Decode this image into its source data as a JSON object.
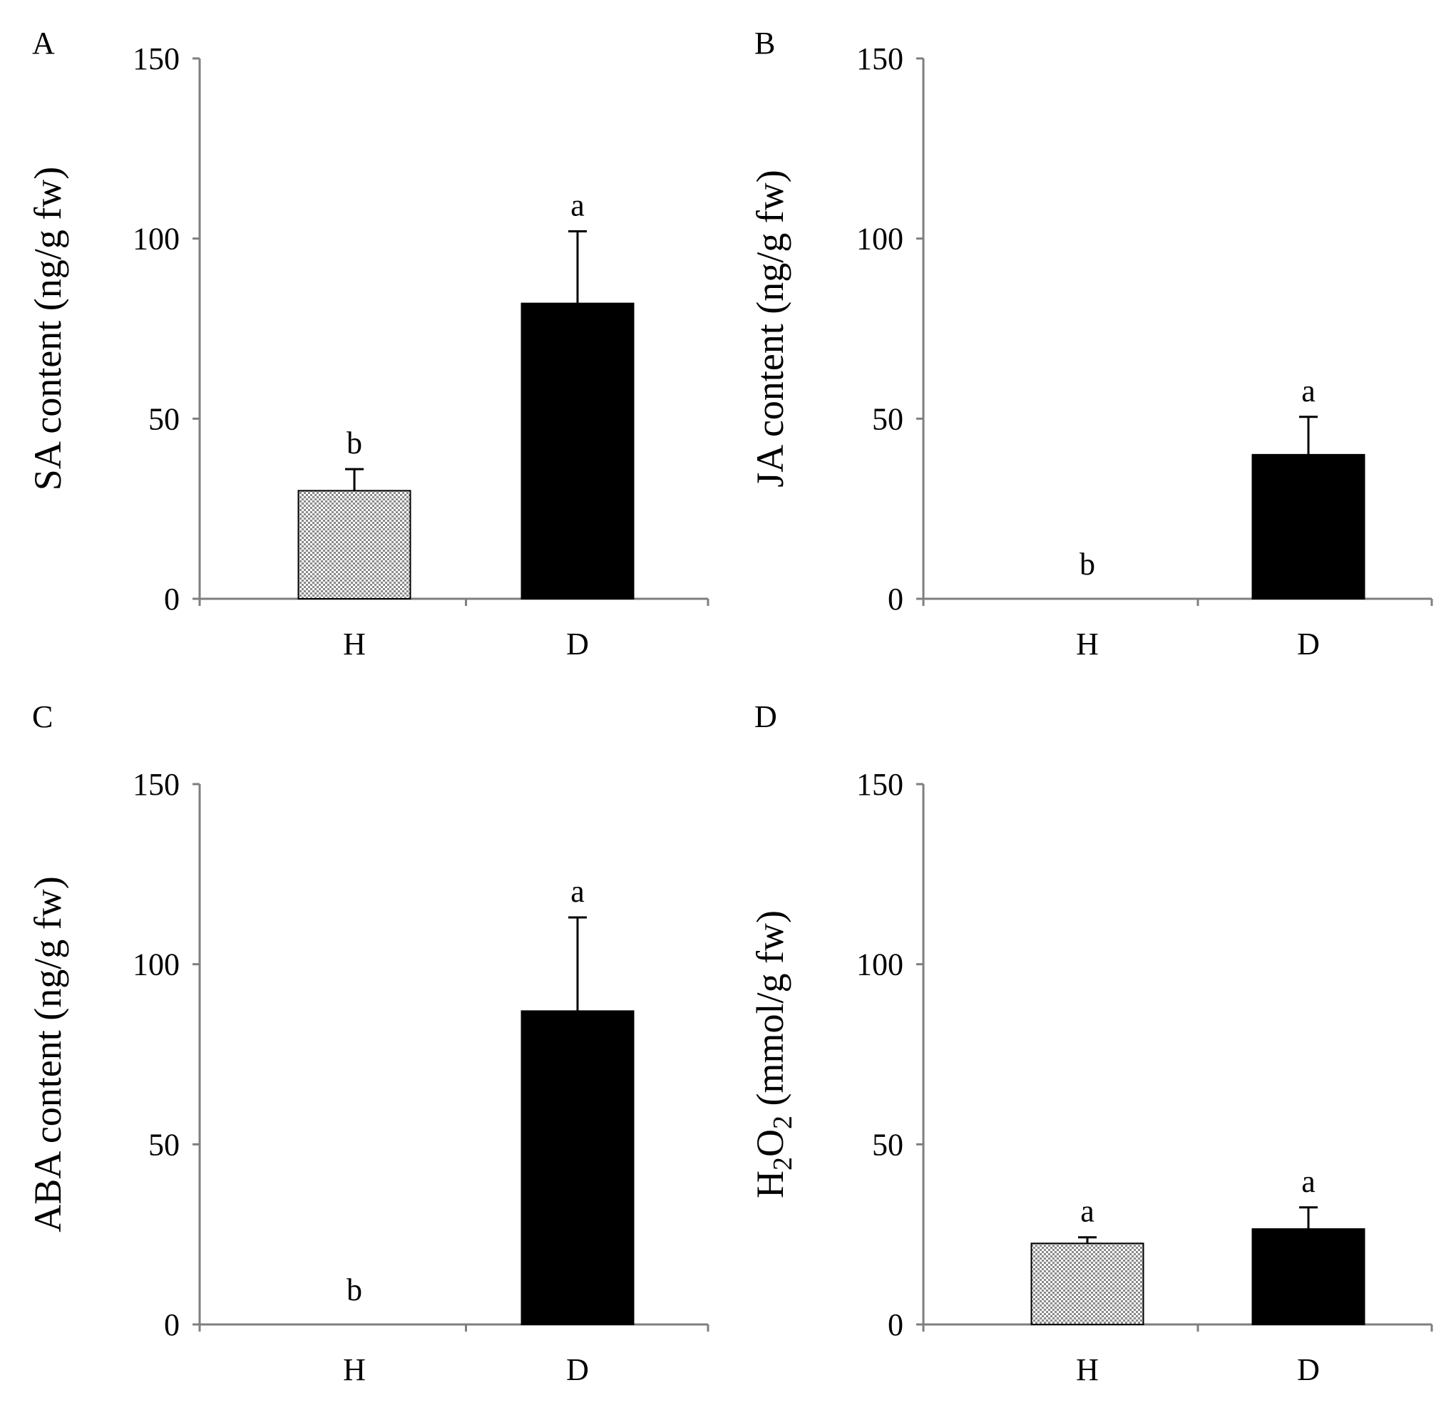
{
  "figure": {
    "colors": {
      "axis": "#7f7f7f",
      "healthy_pattern": "#8a8a8a",
      "diseased_fill": "#000000"
    },
    "panels": [
      {
        "panel": "A",
        "chart_data": {
          "type": "bar",
          "title": "",
          "xlabel": "",
          "ylabel": "SA content (ng/g fw)",
          "ylabel_main": "SA content (ng/g fw)",
          "ylabel_sub": "",
          "ylabel_tail": "",
          "ylim": [
            0,
            150
          ],
          "yticks": [
            0,
            50,
            100,
            150
          ],
          "categories": [
            "H",
            "D"
          ],
          "values": [
            30,
            82
          ],
          "errors": [
            6,
            20
          ],
          "significance": [
            "b",
            "a"
          ],
          "fills": [
            "pattern",
            "solid"
          ]
        }
      },
      {
        "panel": "B",
        "chart_data": {
          "type": "bar",
          "title": "",
          "xlabel": "",
          "ylabel": "JA content (ng/g fw)",
          "ylabel_main": "JA content (ng/g fw)",
          "ylabel_sub": "",
          "ylabel_tail": "",
          "ylim": [
            0,
            150
          ],
          "yticks": [
            0,
            50,
            100,
            150
          ],
          "categories": [
            "H",
            "D"
          ],
          "values": [
            0,
            40
          ],
          "errors": [
            0,
            10.5
          ],
          "significance": [
            "b",
            "a"
          ],
          "fills": [
            "pattern",
            "solid"
          ]
        }
      },
      {
        "panel": "C",
        "chart_data": {
          "type": "bar",
          "title": "",
          "xlabel": "",
          "ylabel": "ABA content (ng/g fw)",
          "ylabel_main": "ABA content (ng/g fw)",
          "ylabel_sub": "",
          "ylabel_tail": "",
          "ylim": [
            0,
            150
          ],
          "yticks": [
            0,
            50,
            100,
            150
          ],
          "categories": [
            "H",
            "D"
          ],
          "values": [
            0,
            87
          ],
          "errors": [
            0,
            26
          ],
          "significance": [
            "b",
            "a"
          ],
          "fills": [
            "pattern",
            "solid"
          ]
        }
      },
      {
        "panel": "D",
        "chart_data": {
          "type": "bar",
          "title": "",
          "xlabel": "",
          "ylabel": "H2O2 (mmol/g fw)",
          "ylabel_main": "H",
          "ylabel_sub": "2",
          "ylabel_mid": "O",
          "ylabel_sub2": "2",
          "ylabel_tail": " (mmol/g fw)",
          "ylim": [
            0,
            150
          ],
          "yticks": [
            0,
            50,
            100,
            150
          ],
          "categories": [
            "H",
            "D"
          ],
          "values": [
            22.5,
            26.5
          ],
          "errors": [
            1.7,
            6
          ],
          "significance": [
            "a",
            "a"
          ],
          "fills": [
            "pattern",
            "solid"
          ]
        }
      }
    ]
  }
}
